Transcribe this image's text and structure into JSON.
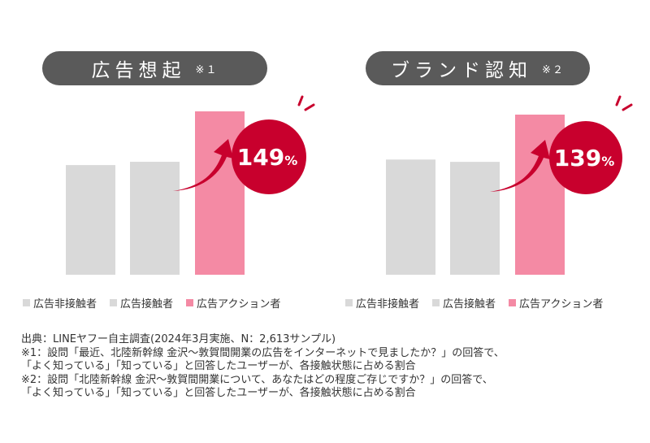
{
  "colors": {
    "gray_bar": "#d9d9d9",
    "pink_bar": "#f48aa4",
    "accent": "#c8002d",
    "pill": "#5a5a5a"
  },
  "legend": [
    {
      "label": "広告非接触者",
      "color": "#d9d9d9"
    },
    {
      "label": "広告接触者",
      "color": "#d9d9d9"
    },
    {
      "label": "広告アクション者",
      "color": "#f48aa4"
    }
  ],
  "charts": [
    {
      "title": "広告想起",
      "note": "※１",
      "badge": {
        "number": "149",
        "unit": "%"
      }
    },
    {
      "title": "ブランド認知",
      "note": "※２",
      "badge": {
        "number": "139",
        "unit": "%"
      }
    }
  ],
  "chart_data": [
    {
      "type": "bar",
      "title": "広告想起",
      "categories": [
        "広告非接触者",
        "広告接触者",
        "広告アクション者"
      ],
      "values": [
        100,
        103,
        149
      ],
      "ylim": [
        0,
        160
      ],
      "grid": false,
      "legend_position": "bottom",
      "annotation": "149%"
    },
    {
      "type": "bar",
      "title": "ブランド認知",
      "categories": [
        "広告非接触者",
        "広告接触者",
        "広告アクション者"
      ],
      "values": [
        100,
        98,
        139
      ],
      "ylim": [
        0,
        150
      ],
      "grid": false,
      "legend_position": "bottom",
      "annotation": "139%"
    }
  ],
  "notes": [
    "出典：LINEヤフー自主調査(2024年3月実施、N：2,613サンプル)",
    "※1：設問「最近、北陸新幹線 金沢～敦賀間開業の広告をインターネットで見ましたか？」の回答で、",
    "「よく知っている」「知っている」と回答したユーザーが、各接触状態に占める割合",
    "※2：設問「北陸新幹線 金沢～敦賀間開業について、あなたはどの程度ご存じですか？」の回答で、",
    "「よく知っている」「知っている」と回答したユーザーが、各接触状態に占める割合"
  ]
}
